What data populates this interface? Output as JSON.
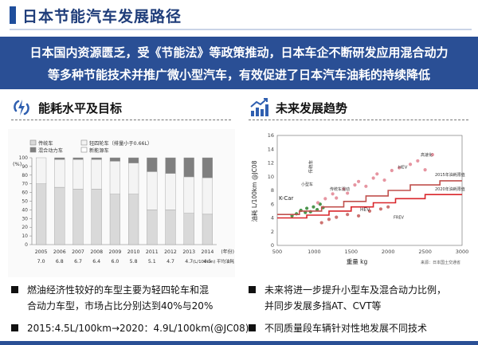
{
  "page": {
    "title": "日本节能汽车发展路径",
    "banner_line1": "日本国内资源匮乏，受《节能法》等政策推动，日本车企不断研发应用混合动力",
    "banner_line2": "等多种节能技术并推广微小型汽车，有效促进了日本汽车油耗的持续降低"
  },
  "colors": {
    "brand": "#2a4f95",
    "accent": "#1f4e9c"
  },
  "left_panel": {
    "icon": "lightning-icon",
    "heading": "能耗水平及目标",
    "bullets": [
      "燃油经济性较好的车型主要为轻四轮车和混",
      "合动力车型，市场占比分别达到40%与20%",
      "2015:4.5L/100km→2020：4.9L/100km(@JC08)"
    ]
  },
  "right_panel": {
    "icon": "trend-chart-icon",
    "heading": "未来发展趋势",
    "bullets": [
      "未来将进一步提升小型车及混合动力比例，",
      "并同步发展多挡AT、CVT等",
      "不同质量段车辆针对性地发展不同技术"
    ]
  },
  "chart_data": [
    {
      "type": "bar",
      "stacked": true,
      "ylim": [
        0,
        100
      ],
      "ylabel": "(%)",
      "yticks": [
        "0",
        "10",
        "20",
        "30",
        "40",
        "50",
        "60",
        "70",
        "80",
        "90",
        "100"
      ],
      "categories": [
        "2005",
        "2006",
        "2007",
        "2008",
        "2009",
        "2010",
        "2011",
        "2012",
        "2013",
        "2014"
      ],
      "x_suffix": "(年份)",
      "sublabels": [
        "7.0",
        "6.8",
        "6.7",
        "6.4",
        "6.0",
        "5.8",
        "5.1",
        "4.7",
        "4.7",
        "4.5"
      ],
      "sublabel_suffix": "(L/100km) 平均油耗",
      "legend": [
        "传统车",
        "轻四轮车（排量小于0.66L）",
        "混合动力车",
        "新能源车"
      ],
      "series": [
        {
          "name": "传统车",
          "values": [
            70,
            66,
            64,
            64,
            58,
            58,
            40,
            40,
            36,
            35
          ]
        },
        {
          "name": "轻四轮车（排量小于0.66L）",
          "values": [
            30,
            32,
            34,
            34,
            38,
            36,
            44,
            42,
            42,
            42
          ]
        },
        {
          "name": "混合动力车",
          "values": [
            0,
            2,
            2,
            2,
            4,
            6,
            16,
            18,
            22,
            23
          ]
        }
      ],
      "colors": [
        "#d9d9d9",
        "#f4f4f4",
        "#7f7f7f"
      ]
    },
    {
      "type": "scatter",
      "xlabel": "重量 kg",
      "ylabel": "油耗 L/100km @JC08",
      "xlim": [
        500,
        3000
      ],
      "ylim": [
        0,
        16
      ],
      "xticks": [
        "500",
        "1000",
        "1500",
        "2000",
        "2500",
        "3000"
      ],
      "yticks": [
        "0",
        "2",
        "4",
        "6",
        "8",
        "10",
        "12",
        "14",
        "16"
      ],
      "annotations": [
        "K-Car",
        "传统车",
        "小型车",
        "传统车混动",
        "高速化",
        "HEV",
        "FREV",
        "HEV",
        "2015年油耗限值",
        "2020年油耗限值",
        "来源：日本国土交通省"
      ],
      "limit_lines": [
        {
          "name": "2015年油耗限值",
          "points": [
            [
              500,
              4.5
            ],
            [
              800,
              4.5
            ],
            [
              800,
              5.0
            ],
            [
              1100,
              5.0
            ],
            [
              1100,
              5.6
            ],
            [
              1400,
              5.6
            ],
            [
              1400,
              6.4
            ],
            [
              1700,
              6.4
            ],
            [
              1700,
              7.2
            ],
            [
              2000,
              7.2
            ],
            [
              2000,
              8.0
            ],
            [
              2300,
              8.0
            ],
            [
              2300,
              8.8
            ],
            [
              2700,
              8.8
            ],
            [
              2700,
              9.4
            ],
            [
              3000,
              9.4
            ]
          ]
        },
        {
          "name": "2020年油耗限值",
          "points": [
            [
              500,
              4.0
            ],
            [
              900,
              4.0
            ],
            [
              900,
              4.4
            ],
            [
              1200,
              4.4
            ],
            [
              1200,
              5.0
            ],
            [
              1500,
              5.0
            ],
            [
              1500,
              5.6
            ],
            [
              1800,
              5.6
            ],
            [
              1800,
              6.2
            ],
            [
              2100,
              6.2
            ],
            [
              2100,
              6.8
            ],
            [
              2500,
              6.8
            ],
            [
              2500,
              7.4
            ],
            [
              3000,
              7.4
            ]
          ]
        }
      ],
      "series": [
        {
          "name": "K-Car",
          "points": [
            [
              700,
              4.3
            ],
            [
              760,
              4.6
            ],
            [
              820,
              5.1
            ],
            [
              880,
              4.8
            ],
            [
              900,
              5.4
            ],
            [
              950,
              4.9
            ],
            [
              990,
              5.6
            ],
            [
              1040,
              5.2
            ],
            [
              1080,
              6.0
            ],
            [
              1120,
              5.5
            ]
          ]
        },
        {
          "name": "传统车",
          "points": [
            [
              1050,
              6.2
            ],
            [
              1150,
              6.8
            ],
            [
              1250,
              7.5
            ],
            [
              1300,
              6.9
            ],
            [
              1400,
              8.2
            ],
            [
              1450,
              7.6
            ],
            [
              1550,
              8.8
            ],
            [
              1600,
              9.3
            ],
            [
              1700,
              8.6
            ],
            [
              1800,
              9.8
            ],
            [
              1850,
              10.4
            ],
            [
              1950,
              9.5
            ],
            [
              2050,
              10.9
            ],
            [
              2150,
              11.3
            ],
            [
              2300,
              11.8
            ],
            [
              2400,
              12.3
            ],
            [
              2500,
              11.0
            ],
            [
              2600,
              13.2
            ]
          ]
        },
        {
          "name": "HEV",
          "points": [
            [
              1100,
              3.3
            ],
            [
              1200,
              3.8
            ],
            [
              1300,
              4.1
            ],
            [
              1450,
              4.5
            ],
            [
              1600,
              4.3
            ],
            [
              1750,
              5.0
            ],
            [
              1900,
              5.3
            ],
            [
              2000,
              5.6
            ]
          ]
        }
      ]
    }
  ]
}
